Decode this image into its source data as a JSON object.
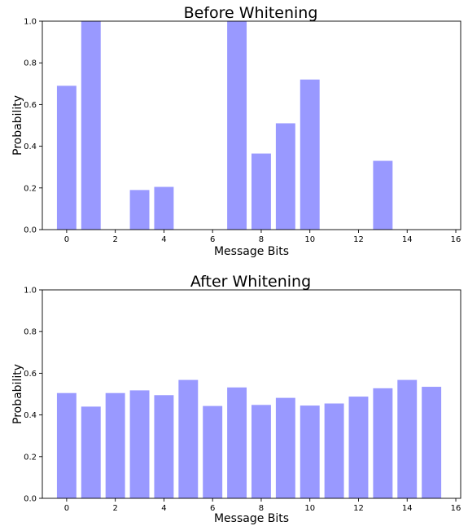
{
  "chart_data": [
    {
      "type": "bar",
      "title": "Before Whitening",
      "xlabel": "Message Bits",
      "ylabel": "Probability",
      "x": [
        0,
        1,
        2,
        3,
        4,
        5,
        6,
        7,
        8,
        9,
        10,
        11,
        12,
        13,
        14,
        15
      ],
      "values": [
        0.69,
        1.0,
        0.0,
        0.19,
        0.205,
        0.0,
        0.0,
        1.0,
        0.365,
        0.51,
        0.72,
        0.0,
        0.0,
        0.33,
        0.0,
        0.0
      ],
      "xlim": [
        -1,
        16.2
      ],
      "ylim": [
        0,
        1
      ],
      "xticks": [
        "0",
        "2",
        "4",
        "6",
        "8",
        "10",
        "12",
        "14",
        "16"
      ],
      "yticks": [
        "0.0",
        "0.2",
        "0.4",
        "0.6",
        "0.8",
        "1.0"
      ],
      "color": "#9999ff",
      "grid": false
    },
    {
      "type": "bar",
      "title": "After Whitening",
      "xlabel": "Message Bits",
      "ylabel": "Probability",
      "x": [
        0,
        1,
        2,
        3,
        4,
        5,
        6,
        7,
        8,
        9,
        10,
        11,
        12,
        13,
        14,
        15
      ],
      "values": [
        0.505,
        0.44,
        0.505,
        0.518,
        0.495,
        0.568,
        0.443,
        0.532,
        0.448,
        0.482,
        0.445,
        0.455,
        0.488,
        0.528,
        0.568,
        0.535
      ],
      "xlim": [
        -1,
        16.2
      ],
      "ylim": [
        0,
        1
      ],
      "xticks": [
        "0",
        "2",
        "4",
        "6",
        "8",
        "10",
        "12",
        "14",
        "16"
      ],
      "yticks": [
        "0.0",
        "0.2",
        "0.4",
        "0.6",
        "0.8",
        "1.0"
      ],
      "color": "#9999ff",
      "grid": false
    }
  ]
}
